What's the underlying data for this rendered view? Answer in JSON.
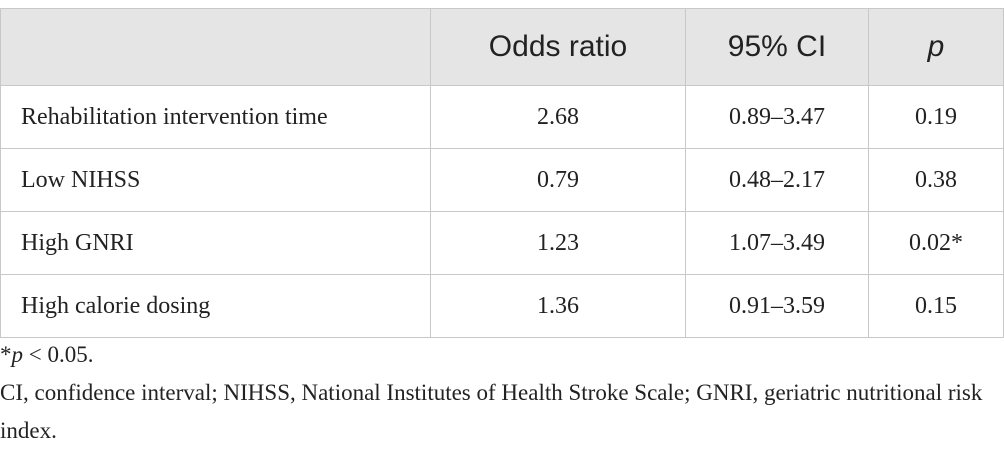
{
  "table": {
    "header": [
      "",
      "Odds ratio",
      "95% CI",
      "p"
    ],
    "rows": [
      [
        "Rehabilitation intervention time",
        "2.68",
        "0.89–3.47",
        "0.19"
      ],
      [
        "Low NIHSS",
        "0.79",
        "0.48–2.17",
        "0.38"
      ],
      [
        "High GNRI",
        "1.23",
        "1.07–3.49",
        "0.02*"
      ],
      [
        "High calorie dosing",
        "1.36",
        "0.91–3.59",
        "0.15"
      ]
    ]
  },
  "footnotes": {
    "significance": {
      "marker": "*",
      "symbol": "p",
      "text": " < 0.05."
    },
    "abbreviations": "CI, confidence interval; NIHSS, National Institutes of Health Stroke Scale; GNRI, geriatric nutritional risk index."
  }
}
